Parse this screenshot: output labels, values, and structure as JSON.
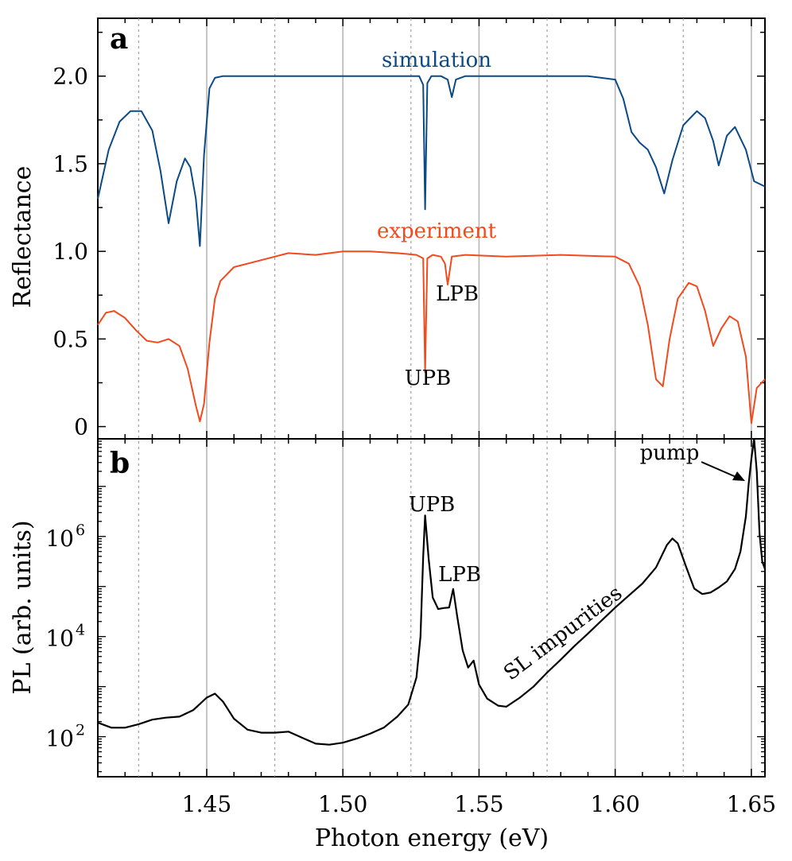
{
  "chart_data": [
    {
      "panel": "a",
      "type": "line",
      "ylabel": "Reflectance",
      "xlim": [
        1.41,
        1.655
      ],
      "ylim": [
        -0.07,
        2.33
      ],
      "y_ticks": [
        {
          "value": 0,
          "label": "0"
        },
        {
          "value": 0.5,
          "label": "0.5"
        },
        {
          "value": 1.0,
          "label": "1.0"
        },
        {
          "value": 1.5,
          "label": "1.5"
        },
        {
          "value": 2.0,
          "label": "2.0"
        }
      ],
      "series": [
        {
          "name": "simulation",
          "color": "#0a4a86",
          "x": [
            1.41,
            1.414,
            1.418,
            1.422,
            1.426,
            1.43,
            1.433,
            1.436,
            1.439,
            1.442,
            1.444,
            1.446,
            1.4475,
            1.449,
            1.451,
            1.453,
            1.456,
            1.46,
            1.47,
            1.5,
            1.528,
            1.5295,
            1.5302,
            1.531,
            1.5325,
            1.536,
            1.5385,
            1.54,
            1.5415,
            1.545,
            1.56,
            1.59,
            1.6,
            1.603,
            1.606,
            1.609,
            1.612,
            1.615,
            1.618,
            1.621,
            1.625,
            1.63,
            1.633,
            1.636,
            1.638,
            1.641,
            1.644,
            1.648,
            1.651,
            1.655
          ],
          "values": [
            1.3,
            1.58,
            1.74,
            1.8,
            1.8,
            1.69,
            1.46,
            1.16,
            1.4,
            1.53,
            1.48,
            1.3,
            1.03,
            1.55,
            1.93,
            1.99,
            2.0,
            2.0,
            2.0,
            2.0,
            2.0,
            1.95,
            1.24,
            1.96,
            2.0,
            2.0,
            1.98,
            1.88,
            1.98,
            2.0,
            2.0,
            2.0,
            1.98,
            1.87,
            1.68,
            1.62,
            1.58,
            1.48,
            1.33,
            1.52,
            1.72,
            1.8,
            1.76,
            1.63,
            1.49,
            1.66,
            1.71,
            1.58,
            1.4,
            1.37
          ]
        },
        {
          "name": "experiment",
          "color": "#f24a1c",
          "x": [
            1.41,
            1.413,
            1.416,
            1.42,
            1.424,
            1.428,
            1.432,
            1.436,
            1.44,
            1.443,
            1.446,
            1.4475,
            1.449,
            1.451,
            1.453,
            1.455,
            1.46,
            1.47,
            1.48,
            1.49,
            1.5,
            1.51,
            1.52,
            1.527,
            1.5295,
            1.5302,
            1.531,
            1.533,
            1.536,
            1.5375,
            1.5385,
            1.54,
            1.545,
            1.56,
            1.58,
            1.6,
            1.605,
            1.609,
            1.612,
            1.615,
            1.6175,
            1.62,
            1.623,
            1.627,
            1.63,
            1.633,
            1.636,
            1.639,
            1.642,
            1.645,
            1.648,
            1.65,
            1.652,
            1.655
          ],
          "values": [
            0.58,
            0.65,
            0.66,
            0.62,
            0.55,
            0.49,
            0.48,
            0.5,
            0.46,
            0.33,
            0.12,
            0.03,
            0.13,
            0.48,
            0.73,
            0.83,
            0.91,
            0.95,
            0.99,
            0.98,
            1.0,
            1.0,
            0.99,
            0.98,
            0.96,
            0.31,
            0.96,
            0.98,
            0.97,
            0.93,
            0.81,
            0.97,
            0.98,
            0.97,
            0.98,
            0.97,
            0.93,
            0.8,
            0.58,
            0.27,
            0.23,
            0.5,
            0.73,
            0.82,
            0.8,
            0.66,
            0.46,
            0.56,
            0.63,
            0.6,
            0.4,
            0.02,
            0.22,
            0.27
          ]
        }
      ],
      "annotations": [
        "simulation",
        "experiment",
        "LPB",
        "UPB"
      ]
    },
    {
      "panel": "b",
      "type": "line",
      "yscale": "log",
      "ylabel": "PL (arb. units)",
      "xlabel": "Photon energy (eV)",
      "xlim": [
        1.41,
        1.655
      ],
      "ylim_log10": [
        1.2,
        7.95
      ],
      "x_ticks": [
        {
          "value": 1.45,
          "label": "1.45"
        },
        {
          "value": 1.5,
          "label": "1.50"
        },
        {
          "value": 1.55,
          "label": "1.55"
        },
        {
          "value": 1.6,
          "label": "1.60"
        },
        {
          "value": 1.65,
          "label": "1.65"
        }
      ],
      "y_ticks": [
        {
          "log10": 2,
          "base": "10",
          "exp": "2"
        },
        {
          "log10": 4,
          "base": "10",
          "exp": "4"
        },
        {
          "log10": 6,
          "base": "10",
          "exp": "6"
        }
      ],
      "series": [
        {
          "name": "PL",
          "color": "#000000",
          "x": [
            1.41,
            1.415,
            1.42,
            1.425,
            1.43,
            1.435,
            1.44,
            1.445,
            1.45,
            1.453,
            1.456,
            1.46,
            1.465,
            1.47,
            1.475,
            1.48,
            1.485,
            1.49,
            1.495,
            1.5,
            1.505,
            1.51,
            1.515,
            1.52,
            1.524,
            1.527,
            1.5285,
            1.5295,
            1.5302,
            1.5315,
            1.533,
            1.535,
            1.537,
            1.539,
            1.5405,
            1.542,
            1.544,
            1.546,
            1.548,
            1.55,
            1.553,
            1.557,
            1.56,
            1.565,
            1.57,
            1.575,
            1.58,
            1.585,
            1.59,
            1.595,
            1.6,
            1.605,
            1.61,
            1.615,
            1.619,
            1.621,
            1.623,
            1.626,
            1.629,
            1.632,
            1.635,
            1.638,
            1.641,
            1.644,
            1.646,
            1.648,
            1.649,
            1.65,
            1.651,
            1.652,
            1.653,
            1.654,
            1.655
          ],
          "log10_values": [
            2.28,
            2.18,
            2.18,
            2.25,
            2.34,
            2.38,
            2.4,
            2.53,
            2.78,
            2.86,
            2.7,
            2.36,
            2.14,
            2.08,
            2.08,
            2.1,
            1.98,
            1.86,
            1.84,
            1.88,
            1.96,
            2.06,
            2.18,
            2.4,
            2.64,
            3.18,
            4.0,
            5.6,
            6.42,
            5.55,
            4.78,
            4.55,
            4.57,
            4.58,
            4.95,
            4.4,
            3.72,
            3.38,
            3.52,
            3.04,
            2.76,
            2.62,
            2.6,
            2.78,
            3.0,
            3.28,
            3.54,
            3.81,
            4.06,
            4.32,
            4.58,
            4.82,
            5.06,
            5.38,
            5.83,
            5.96,
            5.86,
            5.4,
            4.96,
            4.85,
            4.88,
            4.98,
            5.1,
            5.35,
            5.7,
            6.4,
            7.05,
            7.55,
            7.95,
            7.3,
            6.05,
            5.5,
            5.35
          ]
        }
      ],
      "annotations": [
        "pump",
        "UPB",
        "LPB",
        "SL impurities"
      ]
    }
  ]
}
